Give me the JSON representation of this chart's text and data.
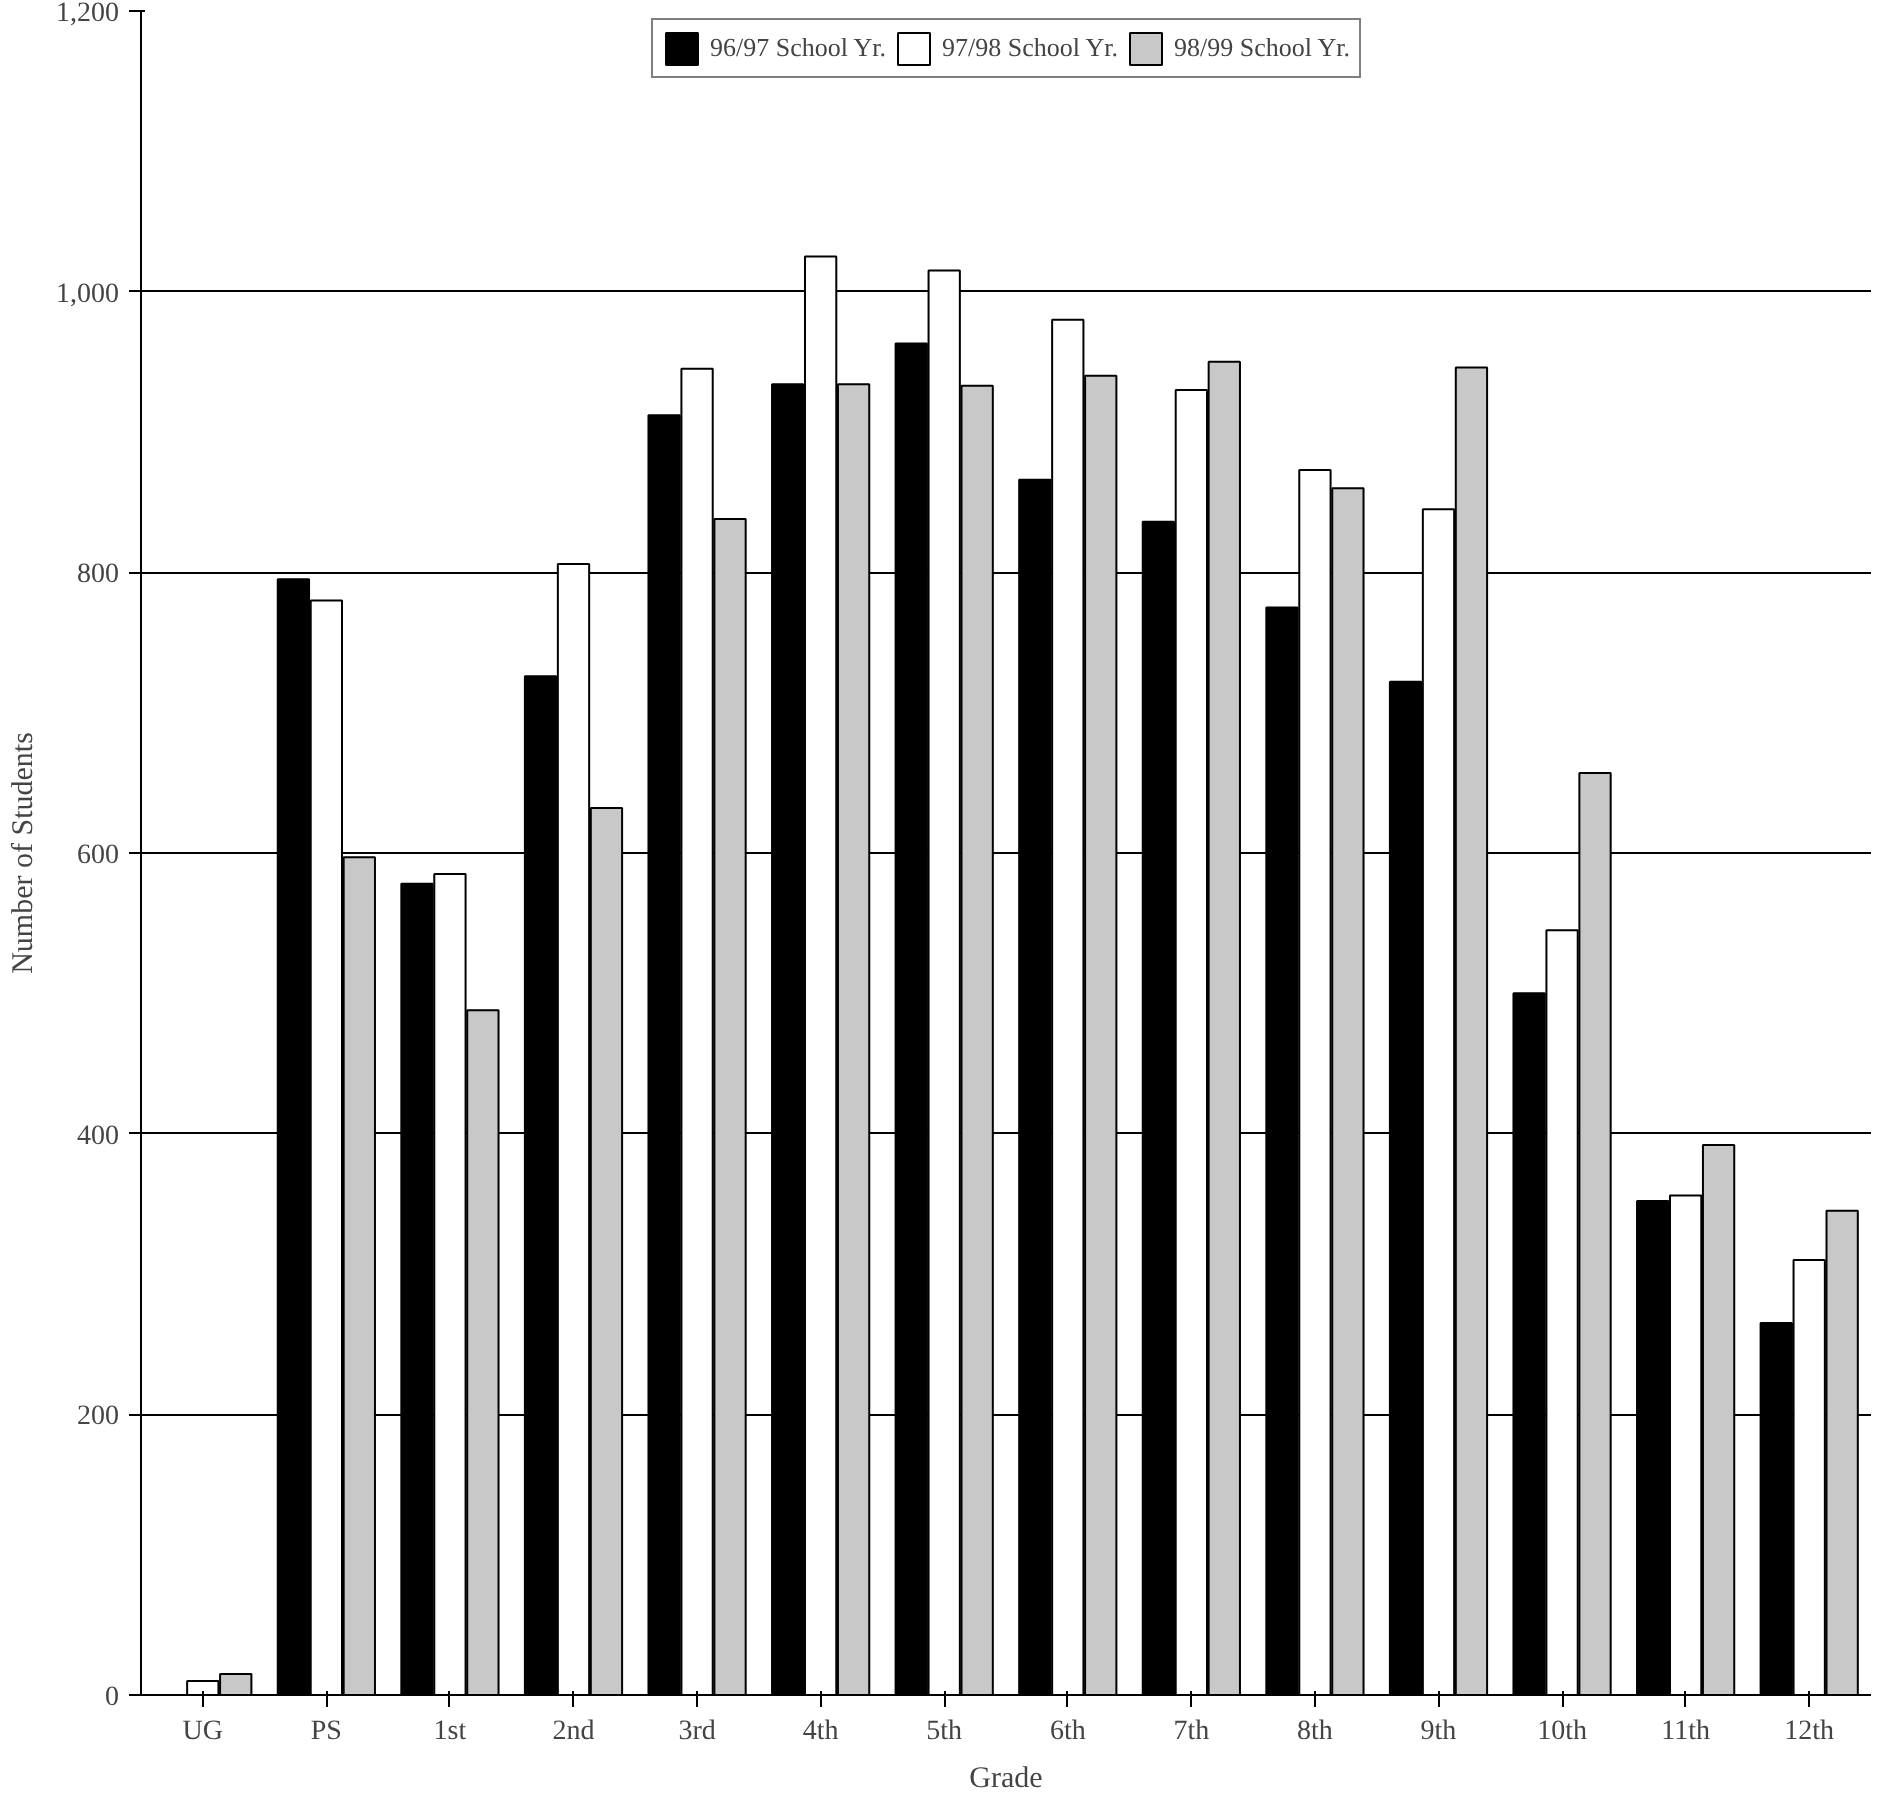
{
  "chart_data": {
    "type": "bar",
    "xlabel": "Grade",
    "ylabel": "Number of Students",
    "categories": [
      "UG",
      "PS",
      "1st",
      "2nd",
      "3rd",
      "4th",
      "5th",
      "6th",
      "7th",
      "8th",
      "9th",
      "10th",
      "11th",
      "12th"
    ],
    "series": [
      {
        "name": "96/97 School Yr.",
        "color": "#000000",
        "values": [
          0,
          795,
          578,
          726,
          912,
          934,
          963,
          866,
          836,
          775,
          722,
          500,
          352,
          265
        ]
      },
      {
        "name": "97/98 School Yr.",
        "color": "#ffffff",
        "values": [
          10,
          780,
          585,
          806,
          945,
          1025,
          1015,
          980,
          930,
          873,
          845,
          545,
          356,
          310
        ]
      },
      {
        "name": "98/99 School Yr.",
        "color": "#c8c8c8",
        "values": [
          15,
          597,
          488,
          632,
          838,
          934,
          933,
          940,
          950,
          860,
          946,
          657,
          392,
          345
        ]
      }
    ],
    "ylim": [
      0,
      1200
    ],
    "yticks": [
      0,
      200,
      400,
      600,
      800,
      {
        "value": 1000,
        "label": "1,000"
      },
      {
        "value": 1200,
        "label": "1,200"
      }
    ],
    "grid": "y",
    "legend": "top"
  }
}
